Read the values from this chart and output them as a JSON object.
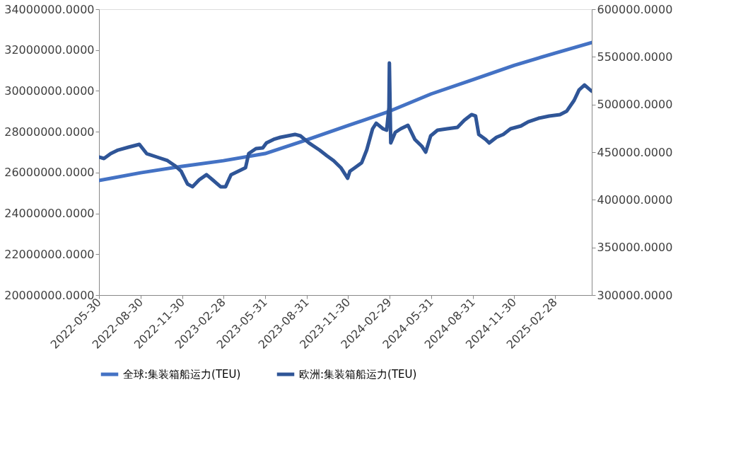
{
  "chart_data": {
    "type": "line",
    "xlim": [
      "2022-05-30",
      "2025-05-20"
    ],
    "xticks": [
      "2022-05-30",
      "2022-08-30",
      "2022-11-30",
      "2023-02-28",
      "2023-05-31",
      "2023-08-31",
      "2023-11-30",
      "2024-02-29",
      "2024-05-31",
      "2024-08-31",
      "2024-11-30",
      "2025-02-28"
    ],
    "ylim": [
      20000000,
      34000000
    ],
    "yticks": [
      {
        "value": 20000000,
        "label": "20000000.0000"
      },
      {
        "value": 22000000,
        "label": "22000000.0000"
      },
      {
        "value": 24000000,
        "label": "24000000.0000"
      },
      {
        "value": 26000000,
        "label": "26000000.0000"
      },
      {
        "value": 28000000,
        "label": "28000000.0000"
      },
      {
        "value": 30000000,
        "label": "30000000.0000"
      },
      {
        "value": 32000000,
        "label": "32000000.0000"
      },
      {
        "value": 34000000,
        "label": "34000000.0000"
      }
    ],
    "y2lim": [
      300000,
      600000
    ],
    "y2ticks": [
      {
        "value": 300000,
        "label": "300000.0000"
      },
      {
        "value": 350000,
        "label": "350000.0000"
      },
      {
        "value": 400000,
        "label": "400000.0000"
      },
      {
        "value": 450000,
        "label": "450000.0000"
      },
      {
        "value": 500000,
        "label": "500000.0000"
      },
      {
        "value": 550000,
        "label": "550000.0000"
      },
      {
        "value": 600000,
        "label": "600000.0000"
      }
    ],
    "grid": false,
    "legend": "bottom",
    "marker": "none",
    "line_style": "solid",
    "series": [
      {
        "name": "全球:集装箱船运力(TEU)",
        "color": "#4472c4",
        "x": [
          "2022-05-30",
          "2022-08-30",
          "2022-11-30",
          "2023-02-28",
          "2023-05-31",
          "2023-08-31",
          "2023-11-30",
          "2024-02-29",
          "2024-05-31",
          "2024-08-31",
          "2024-11-30",
          "2025-02-28",
          "2025-05-20"
        ],
        "values": [
          25610000,
          25990000,
          26310000,
          26580000,
          26930000,
          27600000,
          28300000,
          29000000,
          29850000,
          30550000,
          31250000,
          31850000,
          32370000
        ]
      },
      {
        "name": "欧洲:集装箱船运力(TEU)",
        "color": "#2f5597",
        "axis": "y2",
        "x": [
          "2022-05-30",
          "2022-06-10",
          "2022-06-25",
          "2022-07-11",
          "2022-08-03",
          "2022-08-27",
          "2022-09-12",
          "2022-10-05",
          "2022-10-28",
          "2022-11-13",
          "2022-11-27",
          "2022-12-11",
          "2022-12-22",
          "2023-01-06",
          "2023-01-22",
          "2023-02-06",
          "2023-02-22",
          "2023-03-05",
          "2023-03-17",
          "2023-04-02",
          "2023-04-18",
          "2023-04-25",
          "2023-05-11",
          "2023-05-26",
          "2023-06-03",
          "2023-06-19",
          "2023-07-04",
          "2023-07-20",
          "2023-08-05",
          "2023-08-17",
          "2023-09-05",
          "2023-09-28",
          "2023-10-14",
          "2023-10-29",
          "2023-11-14",
          "2023-11-29",
          "2023-12-04",
          "2023-12-15",
          "2023-12-30",
          "2024-01-10",
          "2024-01-23",
          "2024-01-31",
          "2024-02-15",
          "2024-02-23",
          "2024-02-28",
          "2024-02-29",
          "2024-03-03",
          "2024-03-13",
          "2024-03-25",
          "2024-04-10",
          "2024-04-25",
          "2024-05-11",
          "2024-05-19",
          "2024-05-30",
          "2024-06-14",
          "2024-07-05",
          "2024-07-28",
          "2024-08-12",
          "2024-08-28",
          "2024-09-06",
          "2024-09-13",
          "2024-09-28",
          "2024-10-06",
          "2024-10-22",
          "2024-11-06",
          "2024-11-22",
          "2024-12-15",
          "2024-12-31",
          "2025-01-23",
          "2025-02-15",
          "2025-03-11",
          "2025-03-26",
          "2025-04-11",
          "2025-04-22",
          "2025-05-04",
          "2025-05-20"
        ],
        "values": [
          444800,
          443300,
          448500,
          452200,
          455200,
          458200,
          448500,
          444800,
          441100,
          435900,
          430000,
          416600,
          413700,
          421000,
          426300,
          420300,
          413700,
          413700,
          426300,
          430000,
          433700,
          448500,
          453700,
          454400,
          459600,
          463400,
          465600,
          467100,
          468600,
          467100,
          459600,
          452200,
          446300,
          441100,
          433700,
          422600,
          430000,
          433700,
          438900,
          452200,
          474500,
          480400,
          474500,
          473000,
          496800,
          543600,
          459600,
          470800,
          474500,
          478200,
          463400,
          455900,
          450000,
          467100,
          473000,
          474500,
          476000,
          483400,
          489400,
          487900,
          468600,
          463400,
          459600,
          465600,
          468600,
          474500,
          477500,
          481900,
          485600,
          487900,
          489400,
          493100,
          504200,
          515300,
          520500,
          513900
        ]
      }
    ]
  }
}
